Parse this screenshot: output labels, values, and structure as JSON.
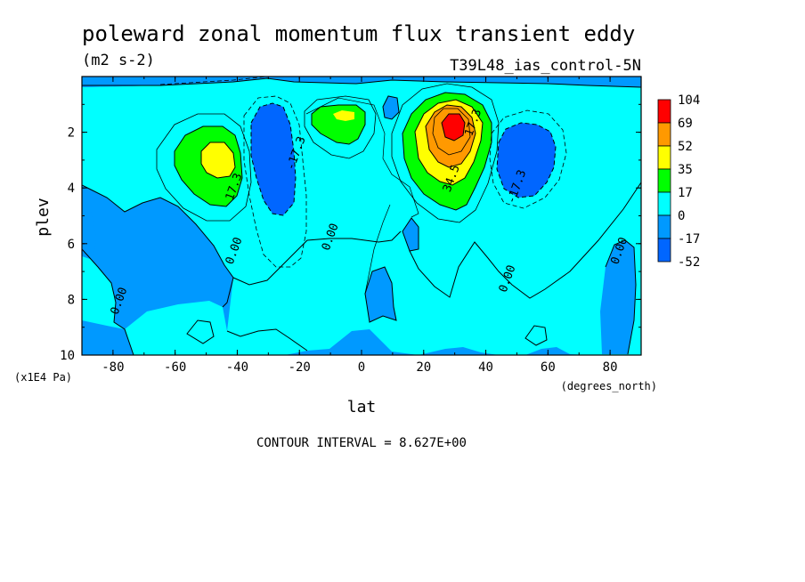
{
  "chart_data": {
    "type": "heatmap",
    "title": "poleward zonal momentum flux transient eddy",
    "units": "(m2 s-2)",
    "experiment": "T39L48_ias_control-5N",
    "xlabel": "lat",
    "xunits": "(degrees_north)",
    "ylabel": "plev",
    "yunits": "(x1E4 Pa)",
    "xlim": [
      -90,
      90
    ],
    "ylim": [
      10,
      0
    ],
    "xticks": [
      "-80",
      "-60",
      "-40",
      "-20",
      "0",
      "20",
      "40",
      "60",
      "80"
    ],
    "yticks": [
      "2",
      "4",
      "6",
      "8",
      "10"
    ],
    "contour_interval_text": "CONTOUR INTERVAL = 8.627E+00",
    "colorbar": {
      "labels": [
        "104",
        "69",
        "52",
        "35",
        "17",
        "0",
        "-17",
        "-52"
      ],
      "colors": [
        "#ff0000",
        "#ff9900",
        "#ffff00",
        "#00ff00",
        "#00ffff",
        "#0099ff",
        "#0066ff"
      ]
    },
    "colors": {
      "level_neg52": "#0066ff",
      "level_neg17": "#0099ff",
      "level_0": "#00ffff",
      "level_17": "#00ff00",
      "level_35": "#ffff00",
      "level_52": "#ff9900",
      "level_69": "#ff0000"
    },
    "features": [
      {
        "type": "positive_max",
        "lat": -46,
        "plev": 3.0,
        "value": 35
      },
      {
        "type": "negative_min",
        "lat": -28,
        "plev": 3.3,
        "value": -17.3
      },
      {
        "type": "positive_max",
        "lat": -7,
        "plev": 1.6,
        "value": 17
      },
      {
        "type": "positive_max",
        "lat": 29,
        "plev": 2.1,
        "value": 69
      },
      {
        "type": "negative_min",
        "lat": 50,
        "plev": 3.2,
        "value": -17.3
      }
    ],
    "contour_labels": [
      {
        "text": "17.3",
        "lat": -40,
        "plev": 4.0
      },
      {
        "text": "0.00",
        "lat": -40,
        "plev": 6.3
      },
      {
        "text": "-17.3",
        "lat": -20,
        "plev": 2.8
      },
      {
        "text": "0.00",
        "lat": -9,
        "plev": 5.8
      },
      {
        "text": "34.5",
        "lat": 30,
        "plev": 3.7
      },
      {
        "text": "17.3",
        "lat": 37,
        "plev": 1.7
      },
      {
        "text": "-17.3",
        "lat": 51,
        "plev": 4.0
      },
      {
        "text": "0.00",
        "lat": -77,
        "plev": 8.1
      },
      {
        "text": "0.00",
        "lat": 48,
        "plev": 7.3
      },
      {
        "text": "0.00",
        "lat": 84,
        "plev": 6.3
      }
    ]
  }
}
